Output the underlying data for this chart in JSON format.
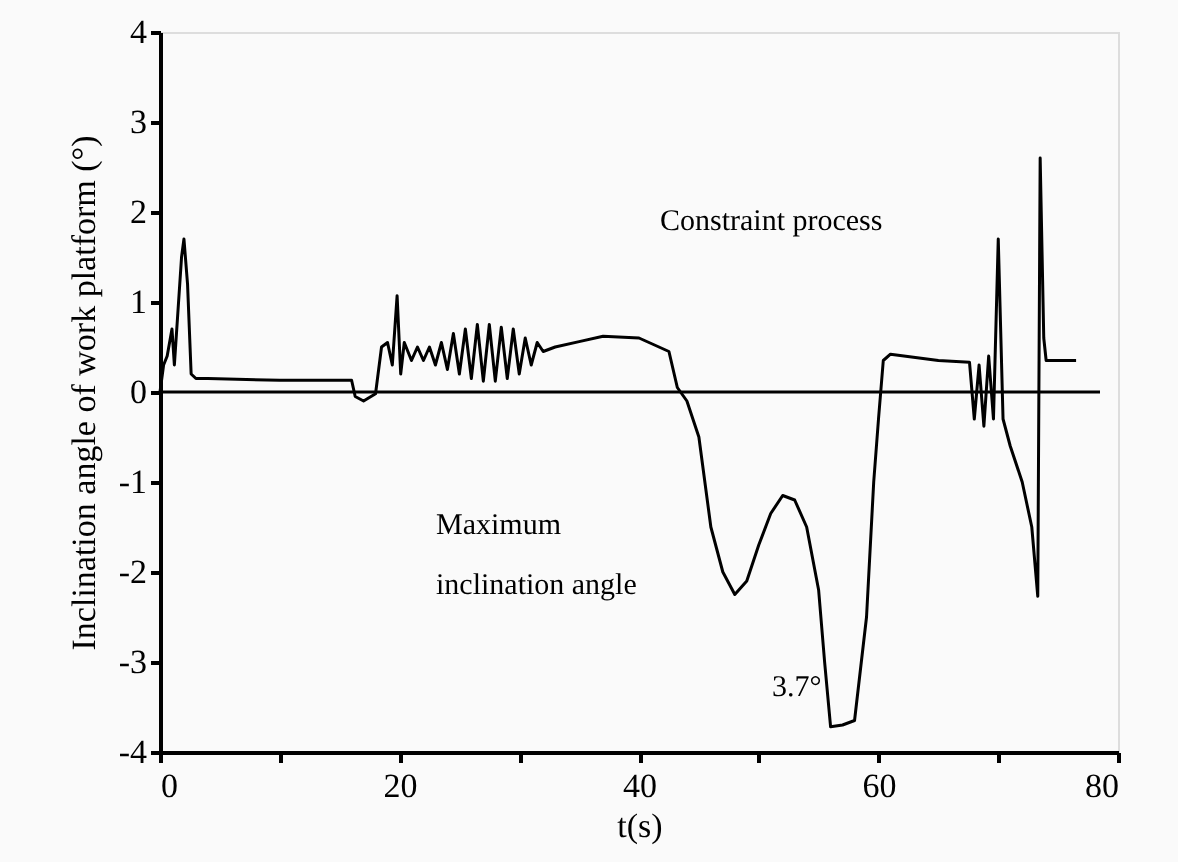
{
  "chart_data": {
    "type": "line",
    "xlabel": "t(s)",
    "ylabel": "Inclination angle of work platform (°)",
    "xlim": [
      0,
      80
    ],
    "ylim": [
      -4,
      4
    ],
    "xticks": [
      0,
      {
        "value": 10,
        "label": null
      },
      20,
      {
        "value": 30,
        "label": null
      },
      40,
      {
        "value": 50,
        "label": null
      },
      60,
      {
        "value": 70,
        "label": null
      },
      80
    ],
    "yticks": [
      -4,
      -3,
      -2,
      -1,
      0,
      1,
      2,
      3,
      4
    ],
    "grid": false,
    "marker": "none",
    "line_style": "solid",
    "series": [
      {
        "color": "#000000",
        "x": [
          0,
          0.3,
          0.6,
          1.0,
          1.2,
          1.5,
          1.8,
          2.0,
          2.3,
          2.6,
          3.0,
          4.0,
          10,
          16.0,
          16.3,
          17.0,
          18.0,
          18.5,
          19.0,
          19.4,
          19.8,
          20.1,
          20.4,
          21.0,
          21.5,
          22.0,
          22.5,
          23.0,
          23.5,
          24.0,
          24.5,
          25.0,
          25.5,
          26.0,
          26.5,
          27.0,
          27.5,
          28.0,
          28.5,
          29.0,
          29.5,
          30.0,
          30.5,
          31.0,
          31.5,
          32.0,
          33.0,
          35.0,
          37.0,
          40.0,
          42.5,
          43.2,
          44.0,
          45.0,
          46.0,
          47.0,
          48.0,
          49.0,
          50.0,
          51.0,
          52.0,
          53.0,
          54.0,
          55.0,
          55.5,
          56.0,
          57.0,
          58.0,
          59.0,
          59.6,
          60.0,
          60.4,
          61.0,
          65.0,
          67.6,
          68.0,
          68.4,
          68.8,
          69.2,
          69.6,
          70.0,
          70.4,
          71.0,
          72.0,
          72.8,
          73.3,
          73.5,
          73.8,
          74.0,
          76.5
        ],
        "values": [
          0,
          0.3,
          0.4,
          0.7,
          0.3,
          0.9,
          1.5,
          1.7,
          1.2,
          0.2,
          0.15,
          0.15,
          0.13,
          0.13,
          -0.05,
          -0.1,
          -0.02,
          0.5,
          0.55,
          0.3,
          1.07,
          0.2,
          0.55,
          0.35,
          0.5,
          0.35,
          0.5,
          0.3,
          0.55,
          0.25,
          0.65,
          0.2,
          0.7,
          0.15,
          0.75,
          0.12,
          0.75,
          0.12,
          0.72,
          0.15,
          0.7,
          0.2,
          0.6,
          0.3,
          0.55,
          0.45,
          0.5,
          0.56,
          0.62,
          0.6,
          0.45,
          0.05,
          -0.1,
          -0.5,
          -1.5,
          -2.0,
          -2.25,
          -2.1,
          -1.7,
          -1.35,
          -1.15,
          -1.2,
          -1.5,
          -2.2,
          -3.0,
          -3.72,
          -3.7,
          -3.65,
          -2.5,
          -1.0,
          -0.3,
          0.35,
          0.42,
          0.35,
          0.33,
          -0.3,
          0.3,
          -0.38,
          0.4,
          -0.3,
          1.7,
          -0.3,
          -0.6,
          -1.0,
          -1.5,
          -2.27,
          2.6,
          0.6,
          0.35,
          0.35
        ]
      }
    ],
    "ref_lines": [
      {
        "axis": "y",
        "value": 0,
        "color": "#000000"
      }
    ],
    "annotations": [
      "Constraint process",
      "Maximum\ninclination angle",
      "3.7°"
    ]
  }
}
